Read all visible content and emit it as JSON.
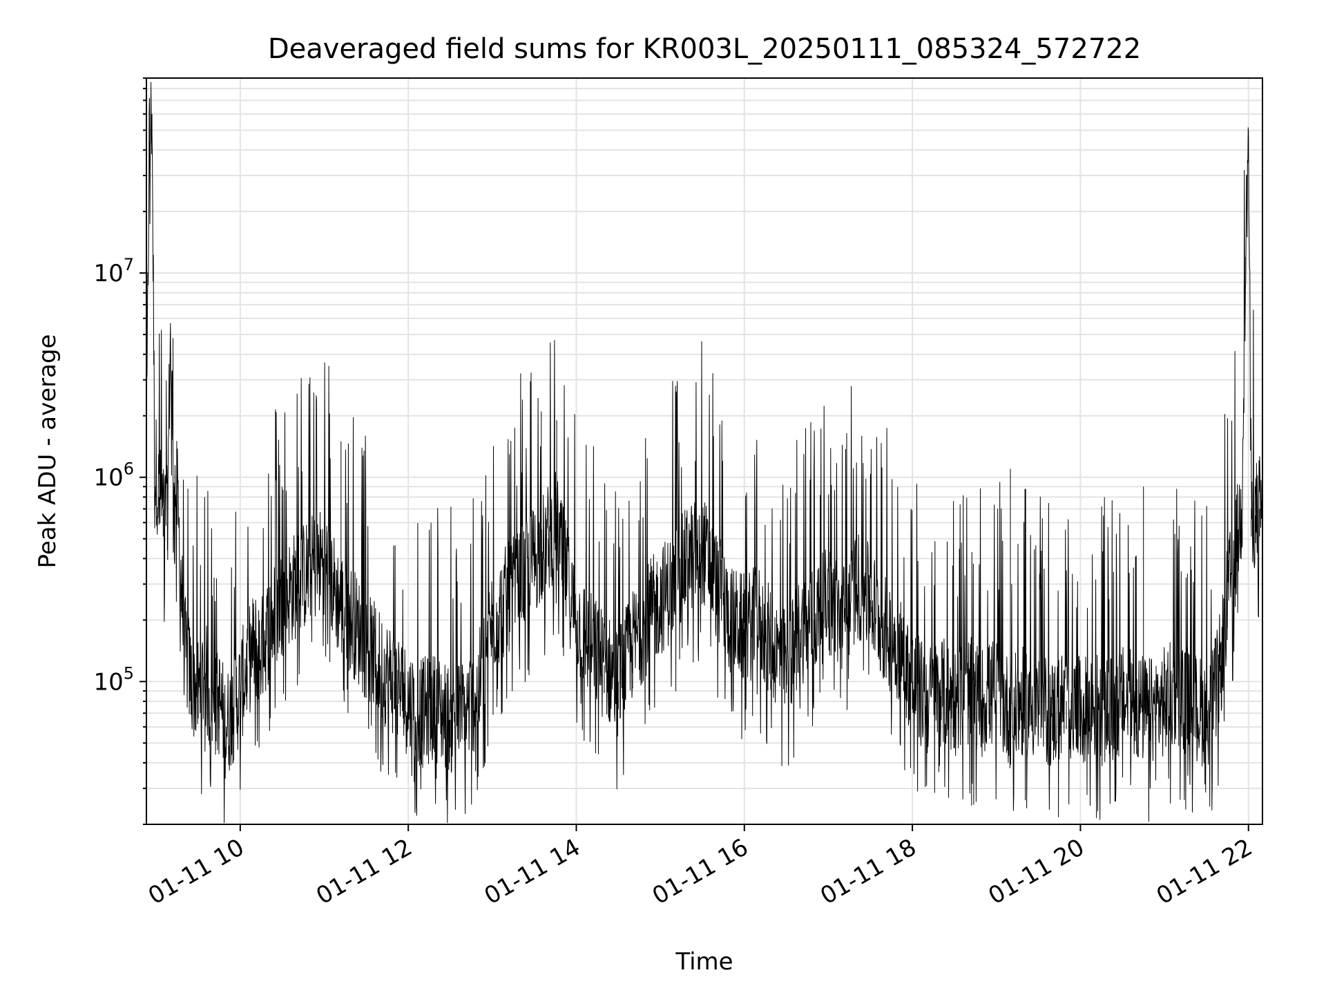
{
  "chart_data": {
    "type": "line",
    "title": "Deaveraged field sums for KR003L_20250111_085324_572722",
    "xlabel": "Time",
    "ylabel": "Peak ADU - average",
    "xaxis": {
      "type": "datetime",
      "range": [
        "2025-01-11 08:53",
        "2025-01-11 22:10"
      ],
      "tick_labels": [
        "01-11 10",
        "01-11 12",
        "01-11 14",
        "01-11 16",
        "01-11 18",
        "01-11 20",
        "01-11 22"
      ],
      "tick_times": [
        "2025-01-11 10:00",
        "2025-01-11 12:00",
        "2025-01-11 14:00",
        "2025-01-11 16:00",
        "2025-01-11 18:00",
        "2025-01-11 20:00",
        "2025-01-11 22:00"
      ]
    },
    "yaxis": {
      "scale": "log",
      "range": [
        20000,
        90000000
      ],
      "major_ticks": [
        {
          "value": 100000,
          "base": "10",
          "exp": "5"
        },
        {
          "value": 1000000,
          "base": "10",
          "exp": "6"
        },
        {
          "value": 10000000,
          "base": "10",
          "exp": "7"
        }
      ]
    },
    "grid": true,
    "line_color": "#000000",
    "grid_color": "#e3e3e3",
    "series": [
      {
        "color": "#000000",
        "x": [
          "2025-01-11 08:53",
          "2025-01-11 08:55",
          "2025-01-11 08:57",
          "2025-01-11 08:59",
          "2025-01-11 09:00",
          "2025-01-11 09:02",
          "2025-01-11 09:05",
          "2025-01-11 09:08",
          "2025-01-11 09:10",
          "2025-01-11 09:13",
          "2025-01-11 09:15",
          "2025-01-11 09:18",
          "2025-01-11 09:20",
          "2025-01-11 09:25",
          "2025-01-11 09:30",
          "2025-01-11 09:35",
          "2025-01-11 09:40",
          "2025-01-11 09:45",
          "2025-01-11 09:50",
          "2025-01-11 09:55",
          "2025-01-11 10:00",
          "2025-01-11 10:05",
          "2025-01-11 10:10",
          "2025-01-11 10:15",
          "2025-01-11 10:20",
          "2025-01-11 10:30",
          "2025-01-11 10:40",
          "2025-01-11 10:50",
          "2025-01-11 11:00",
          "2025-01-11 11:10",
          "2025-01-11 11:20",
          "2025-01-11 11:30",
          "2025-01-11 11:40",
          "2025-01-11 11:50",
          "2025-01-11 12:00",
          "2025-01-11 12:10",
          "2025-01-11 12:20",
          "2025-01-11 12:30",
          "2025-01-11 12:40",
          "2025-01-11 12:45",
          "2025-01-11 12:50",
          "2025-01-11 13:00",
          "2025-01-11 13:10",
          "2025-01-11 13:20",
          "2025-01-11 13:30",
          "2025-01-11 13:40",
          "2025-01-11 13:45",
          "2025-01-11 13:50",
          "2025-01-11 14:00",
          "2025-01-11 14:10",
          "2025-01-11 14:20",
          "2025-01-11 14:30",
          "2025-01-11 14:40",
          "2025-01-11 14:50",
          "2025-01-11 15:00",
          "2025-01-11 15:10",
          "2025-01-11 15:20",
          "2025-01-11 15:30",
          "2025-01-11 15:40",
          "2025-01-11 15:50",
          "2025-01-11 16:00",
          "2025-01-11 16:10",
          "2025-01-11 16:20",
          "2025-01-11 16:30",
          "2025-01-11 16:40",
          "2025-01-11 16:50",
          "2025-01-11 17:00",
          "2025-01-11 17:10",
          "2025-01-11 17:20",
          "2025-01-11 17:30",
          "2025-01-11 17:40",
          "2025-01-11 17:50",
          "2025-01-11 18:00",
          "2025-01-11 18:10",
          "2025-01-11 18:20",
          "2025-01-11 18:30",
          "2025-01-11 18:40",
          "2025-01-11 18:50",
          "2025-01-11 19:00",
          "2025-01-11 19:10",
          "2025-01-11 19:20",
          "2025-01-11 19:30",
          "2025-01-11 19:40",
          "2025-01-11 19:50",
          "2025-01-11 20:00",
          "2025-01-11 20:10",
          "2025-01-11 20:20",
          "2025-01-11 20:30",
          "2025-01-11 20:40",
          "2025-01-11 20:50",
          "2025-01-11 21:00",
          "2025-01-11 21:10",
          "2025-01-11 21:20",
          "2025-01-11 21:30",
          "2025-01-11 21:35",
          "2025-01-11 21:40",
          "2025-01-11 21:45",
          "2025-01-11 21:50",
          "2025-01-11 21:55",
          "2025-01-11 21:58",
          "2025-01-11 22:00",
          "2025-01-11 22:02",
          "2025-01-11 22:05",
          "2025-01-11 22:08",
          "2025-01-11 22:10"
        ],
        "values": [
          1000000,
          45000000,
          60000000,
          900000,
          1100000,
          800000,
          700000,
          600000,
          5000000,
          900000,
          800000,
          300000,
          150000,
          100000,
          90000,
          110000,
          70000,
          80000,
          60000,
          75000,
          90000,
          120000,
          150000,
          140000,
          180000,
          250000,
          300000,
          350000,
          400000,
          250000,
          200000,
          150000,
          120000,
          100000,
          80000,
          70000,
          75000,
          65000,
          70000,
          80000,
          90000,
          200000,
          250000,
          300000,
          400000,
          500000,
          600000,
          400000,
          200000,
          150000,
          120000,
          100000,
          150000,
          200000,
          250000,
          300000,
          400000,
          450000,
          300000,
          200000,
          180000,
          200000,
          150000,
          120000,
          180000,
          200000,
          250000,
          200000,
          300000,
          250000,
          180000,
          150000,
          100000,
          80000,
          90000,
          80000,
          90000,
          80000,
          90000,
          70000,
          80000,
          75000,
          70000,
          80000,
          70000,
          75000,
          70000,
          80000,
          75000,
          70000,
          80000,
          90000,
          75000,
          70000,
          80000,
          120000,
          250000,
          400000,
          700000,
          12000000,
          50000000,
          700000,
          650000,
          700000,
          750000
        ],
        "envelope_peaks": {
          "x": [
            "2025-01-11 09:12",
            "2025-01-11 11:12",
            "2025-01-11 13:35",
            "2025-01-11 13:46",
            "2025-01-11 15:25",
            "2025-01-11 19:10",
            "2025-01-11 20:45"
          ],
          "values": [
            4800000,
            1500000,
            2100000,
            1900000,
            1200000,
            1100000,
            900000
          ]
        }
      }
    ]
  }
}
